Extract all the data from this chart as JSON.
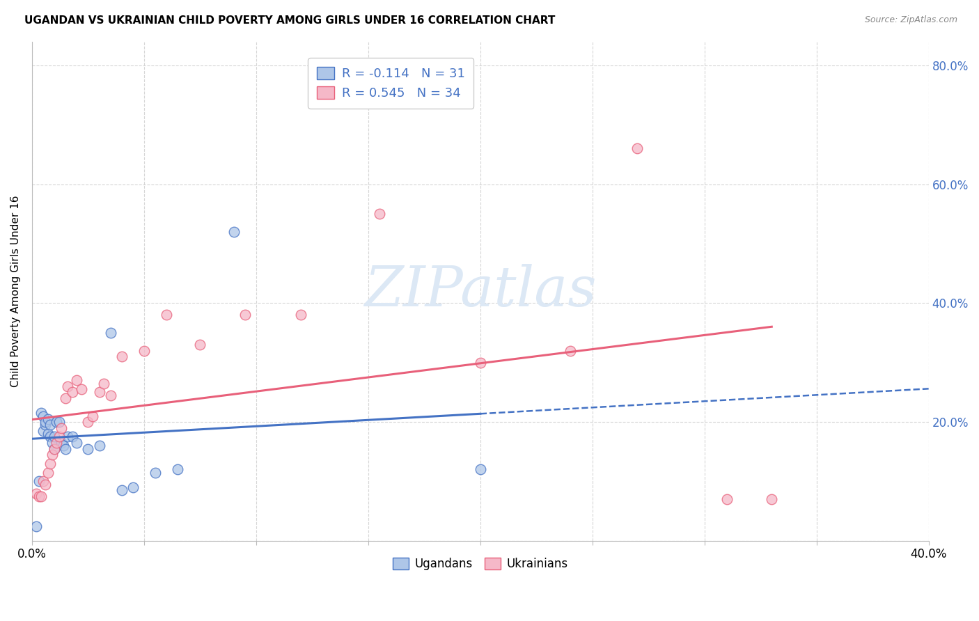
{
  "title": "UGANDAN VS UKRAINIAN CHILD POVERTY AMONG GIRLS UNDER 16 CORRELATION CHART",
  "source": "Source: ZipAtlas.com",
  "ylabel": "Child Poverty Among Girls Under 16",
  "xlim": [
    0.0,
    0.4
  ],
  "ylim": [
    0.0,
    0.84
  ],
  "yticks": [
    0.0,
    0.2,
    0.4,
    0.6,
    0.8
  ],
  "xticks": [
    0.0,
    0.05,
    0.1,
    0.15,
    0.2,
    0.25,
    0.3,
    0.35,
    0.4
  ],
  "ugandan_R": -0.114,
  "ugandan_N": 31,
  "ukrainian_R": 0.545,
  "ukrainian_N": 34,
  "ugandan_color": "#aec6e8",
  "ukrainian_color": "#f5b8c8",
  "ugandan_line_color": "#4472c4",
  "ukrainian_line_color": "#e8607a",
  "watermark_color": "#dce8f5",
  "ugandan_x": [
    0.002,
    0.003,
    0.004,
    0.005,
    0.005,
    0.006,
    0.006,
    0.007,
    0.007,
    0.008,
    0.008,
    0.009,
    0.01,
    0.01,
    0.011,
    0.012,
    0.013,
    0.014,
    0.015,
    0.016,
    0.018,
    0.02,
    0.025,
    0.03,
    0.035,
    0.04,
    0.045,
    0.055,
    0.065,
    0.09,
    0.2
  ],
  "ugandan_y": [
    0.025,
    0.1,
    0.215,
    0.185,
    0.21,
    0.195,
    0.2,
    0.18,
    0.205,
    0.175,
    0.195,
    0.165,
    0.155,
    0.175,
    0.2,
    0.2,
    0.165,
    0.16,
    0.155,
    0.175,
    0.175,
    0.165,
    0.155,
    0.16,
    0.35,
    0.085,
    0.09,
    0.115,
    0.12,
    0.52,
    0.12
  ],
  "ukrainian_x": [
    0.002,
    0.003,
    0.004,
    0.005,
    0.006,
    0.007,
    0.008,
    0.009,
    0.01,
    0.011,
    0.012,
    0.013,
    0.015,
    0.016,
    0.018,
    0.02,
    0.022,
    0.025,
    0.027,
    0.03,
    0.032,
    0.035,
    0.04,
    0.05,
    0.06,
    0.075,
    0.095,
    0.12,
    0.155,
    0.2,
    0.24,
    0.27,
    0.31,
    0.33
  ],
  "ukrainian_y": [
    0.08,
    0.075,
    0.075,
    0.1,
    0.095,
    0.115,
    0.13,
    0.145,
    0.155,
    0.165,
    0.175,
    0.19,
    0.24,
    0.26,
    0.25,
    0.27,
    0.255,
    0.2,
    0.21,
    0.25,
    0.265,
    0.245,
    0.31,
    0.32,
    0.38,
    0.33,
    0.38,
    0.38,
    0.55,
    0.3,
    0.32,
    0.66,
    0.07,
    0.07
  ]
}
